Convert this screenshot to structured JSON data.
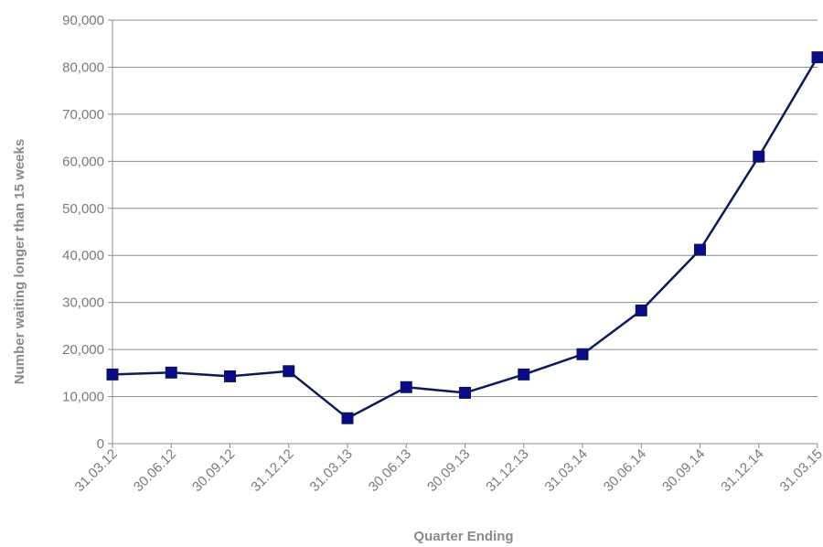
{
  "chart_data": {
    "type": "line",
    "title": "",
    "xlabel": "Quarter Ending",
    "ylabel": "Number waiting longer than 15 weeks",
    "categories": [
      "31.03.12",
      "30.06.12",
      "30.09.12",
      "31.12.12",
      "31.03.13",
      "30.06.13",
      "30.09.13",
      "31.12.13",
      "31.03.14",
      "30.06.14",
      "30.09.14",
      "31.12.14",
      "31.03.15"
    ],
    "series": [
      {
        "values": [
          14700,
          15100,
          14300,
          15400,
          5400,
          12000,
          10800,
          14700,
          19000,
          28300,
          41200,
          61000,
          82100
        ]
      }
    ],
    "ylim": [
      0,
      90000
    ],
    "yticks": [
      0,
      10000,
      20000,
      30000,
      40000,
      50000,
      60000,
      70000,
      80000,
      90000
    ],
    "ytick_labels": [
      "0",
      "10,000",
      "20,000",
      "30,000",
      "40,000",
      "50,000",
      "60,000",
      "70,000",
      "80,000",
      "90,000"
    ],
    "grid": "horizontal",
    "legend": "none",
    "colors": {
      "line": "#0d1a5c",
      "marker": "#0b0b8a",
      "marker_edge": "#081a4a",
      "grid": "#8c8c8c",
      "axis": "#8c8c8c"
    }
  }
}
